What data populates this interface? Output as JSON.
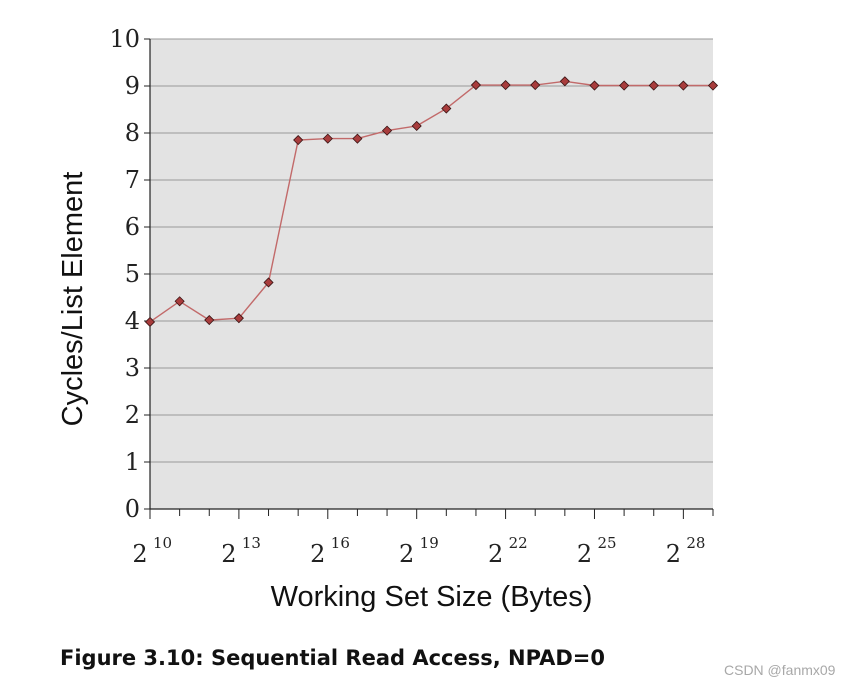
{
  "chart_data": {
    "type": "line",
    "xlabel": "Working Set Size (Bytes)",
    "ylabel": "Cycles/List Element",
    "x_scale": "log2",
    "x_tick_labels": [
      {
        "base": "2",
        "exp": "10"
      },
      {
        "base": "2",
        "exp": "13"
      },
      {
        "base": "2",
        "exp": "16"
      },
      {
        "base": "2",
        "exp": "19"
      },
      {
        "base": "2",
        "exp": "22"
      },
      {
        "base": "2",
        "exp": "25"
      },
      {
        "base": "2",
        "exp": "28"
      }
    ],
    "y_ticks": [
      0,
      1,
      2,
      3,
      4,
      5,
      6,
      7,
      8,
      9,
      10
    ],
    "ylim": [
      0,
      10
    ],
    "grid": "horizontal",
    "plot_background": "#e3e3e3",
    "line_color": "#c26a6a",
    "marker_fill": "#a83c3c",
    "marker": "diamond",
    "series": [
      {
        "x": [
          1024,
          2048,
          4096,
          8192,
          16384,
          32768,
          65536,
          131072,
          262144,
          524288,
          1048576,
          2097152,
          4194304,
          8388608,
          16777216,
          33554432,
          67108864,
          134217728,
          268435456,
          536870912
        ],
        "values": [
          3.98,
          4.42,
          4.02,
          4.06,
          4.82,
          7.85,
          7.88,
          7.88,
          8.05,
          8.15,
          8.52,
          9.02,
          9.02,
          9.02,
          9.1,
          9.01,
          9.01,
          9.01,
          9.01,
          9.01
        ]
      }
    ]
  },
  "caption": "Figure 3.10: Sequential Read Access, NPAD=0",
  "watermark": "CSDN @fanmx09"
}
